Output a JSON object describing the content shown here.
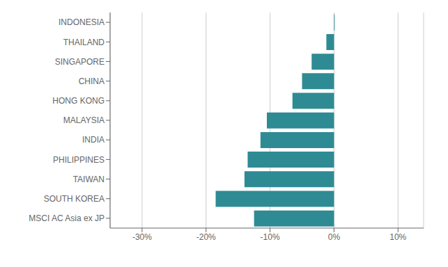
{
  "chart_data": {
    "type": "bar",
    "orientation": "horizontal",
    "categories": [
      "INDONESIA",
      "THAILAND",
      "SINGAPORE",
      "CHINA",
      "HONG KONG",
      "MALAYSIA",
      "INDIA",
      "PHILIPPINES",
      "TAIWAN",
      "SOUTH KOREA",
      "MSCI AC Asia ex JP"
    ],
    "values": [
      0.1,
      -1.2,
      -3.5,
      -5.0,
      -6.5,
      -10.5,
      -11.5,
      -13.5,
      -14.0,
      -18.5,
      -12.5
    ],
    "color": "#2e8b94",
    "xlim": [
      -35,
      14
    ],
    "xticks": [
      {
        "value": -30,
        "label": "-30%"
      },
      {
        "value": -20,
        "label": "-20%"
      },
      {
        "value": -10,
        "label": "-10%"
      },
      {
        "value": 0,
        "label": "0%"
      },
      {
        "value": 10,
        "label": "10%"
      }
    ],
    "grid": true
  }
}
